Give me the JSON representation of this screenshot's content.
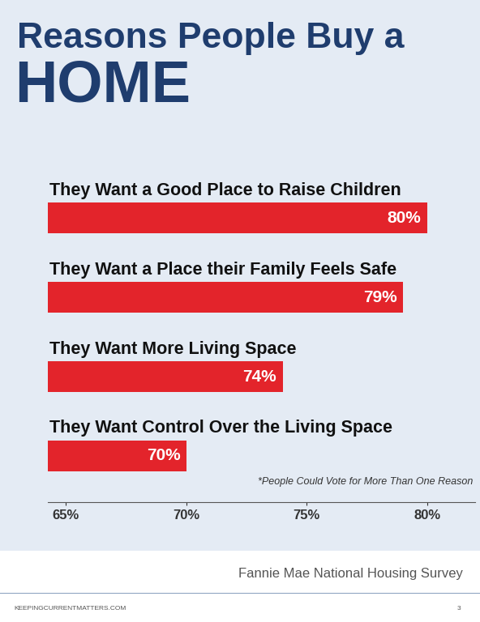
{
  "chart_data": {
    "type": "bar",
    "orientation": "horizontal",
    "title": "Reasons People Buy a\nHOME",
    "categories": [
      "They Want a Good Place to Raise Children",
      "They Want a Place their Family Feels Safe",
      "They Want More Living Space",
      "They Want Control Over the Living Space"
    ],
    "values": [
      80,
      79,
      74,
      70
    ],
    "value_labels": [
      "80%",
      "79%",
      "74%",
      "70%"
    ],
    "data_labels": true,
    "color": "#e3242b",
    "xlim": [
      64.25,
      82
    ],
    "xticks": [
      {
        "value": 65,
        "label": "65%"
      },
      {
        "value": 70,
        "label": "70%"
      },
      {
        "value": 75,
        "label": "75%"
      },
      {
        "value": 80,
        "label": "80%"
      }
    ],
    "grid": false,
    "tick_labels": "x",
    "annotations": [
      "*People Could Vote for More Than One Reason"
    ],
    "source": "Fannie Mae National Housing Survey",
    "footer": "KEEPINGCURRENTMATTERS.COM",
    "page_number": 3
  }
}
